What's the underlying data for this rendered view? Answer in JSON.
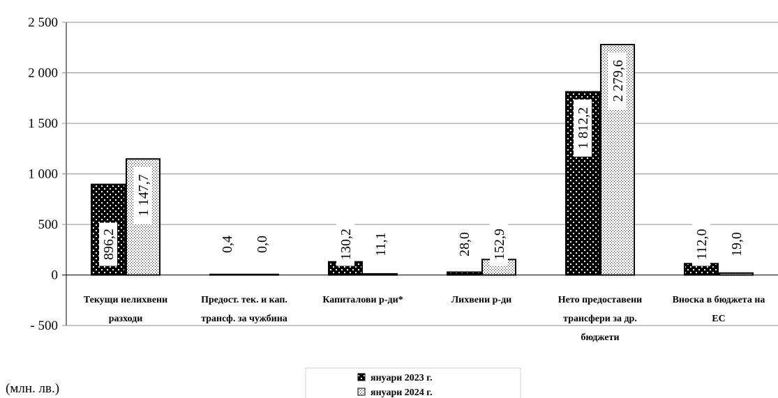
{
  "chart_data": {
    "type": "bar",
    "categories": [
      [
        "Текущи нелихвени",
        "разходи"
      ],
      [
        "Предост. тек. и кап.",
        "трансф. за чужбина"
      ],
      [
        "Капиталови р-ди*"
      ],
      [
        "Лихвени р-ди"
      ],
      [
        "Нето предоставени",
        "трансфери за др.",
        "бюджети"
      ],
      [
        "Вноска в бюджета на",
        "ЕС"
      ]
    ],
    "series": [
      {
        "name": "януари 2023 г.",
        "values": [
          896.2,
          0.4,
          130.2,
          28.0,
          1812.2,
          112.0
        ],
        "labels": [
          "896,2",
          "0,4",
          "130,2",
          "28,0",
          "1 812,2",
          "112,0"
        ]
      },
      {
        "name": "януари 2024 г.",
        "values": [
          1147.7,
          0.0,
          11.1,
          152.9,
          2279.6,
          19.0
        ],
        "labels": [
          "1 147,7",
          "0,0",
          "11,1",
          "152,9",
          "2 279,6",
          "19,0"
        ]
      }
    ],
    "ylim": [
      -500,
      2500
    ],
    "yticks": [
      2500,
      2000,
      1500,
      1000,
      500,
      0,
      -500
    ],
    "ytick_labels": [
      "2 500",
      "2 000",
      "1 500",
      "1 000",
      "500",
      "0",
      "- 500"
    ],
    "unit_label": "(млн. лв.)",
    "grid": true,
    "legend_position": "bottom"
  }
}
